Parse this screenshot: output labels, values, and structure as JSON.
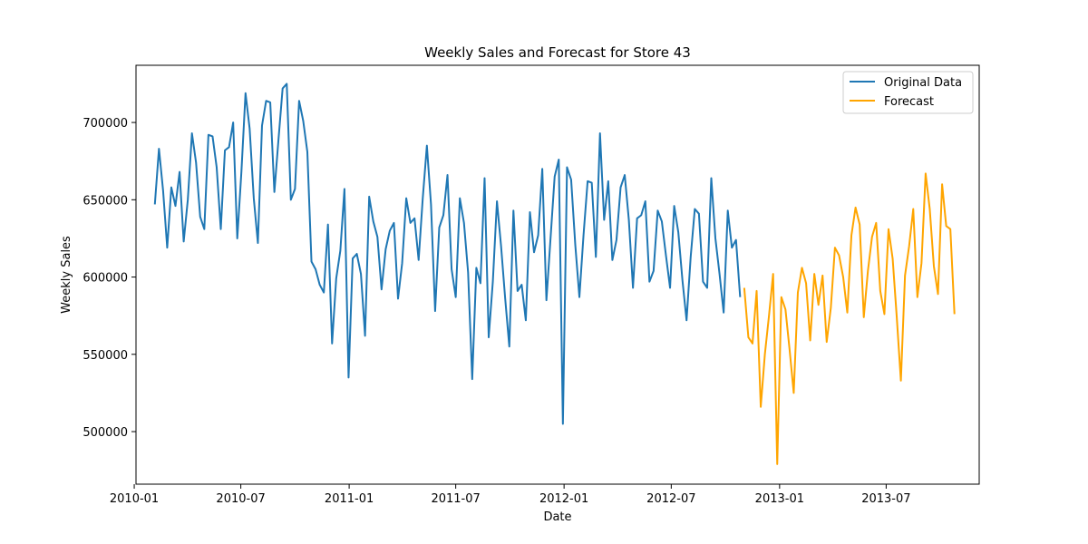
{
  "chart_data": {
    "type": "line",
    "title": "Weekly Sales and Forecast for Store 43",
    "xlabel": "Date",
    "ylabel": "Weekly Sales",
    "x_ticks": [
      "2010-01",
      "2010-07",
      "2011-01",
      "2011-07",
      "2012-01",
      "2012-07",
      "2013-01",
      "2013-07"
    ],
    "y_ticks": [
      500000,
      550000,
      600000,
      650000,
      700000
    ],
    "x_range": [
      "2010-01-04",
      "2013-12-06"
    ],
    "ylim": [
      466000,
      737000
    ],
    "grid": false,
    "legend_position": "top-right",
    "series": [
      {
        "name": "Original Data",
        "color": "#1f77b4",
        "start_date": "2010-02-05",
        "interval_days": 7,
        "values": [
          647000,
          683000,
          656000,
          619000,
          658000,
          646000,
          668000,
          623000,
          650000,
          693000,
          674000,
          639000,
          631000,
          692000,
          691000,
          671000,
          631000,
          682000,
          684000,
          700000,
          625000,
          668000,
          719000,
          696000,
          651000,
          622000,
          698000,
          714000,
          713000,
          655000,
          689000,
          722000,
          725000,
          650000,
          657000,
          714000,
          701000,
          681000,
          610000,
          605000,
          595000,
          590000,
          634000,
          557000,
          599000,
          617000,
          657000,
          535000,
          612000,
          615000,
          602000,
          562000,
          652000,
          636000,
          626000,
          592000,
          618000,
          630000,
          635000,
          586000,
          609000,
          651000,
          635000,
          638000,
          611000,
          651000,
          685000,
          647000,
          578000,
          632000,
          640000,
          666000,
          605000,
          587000,
          651000,
          635000,
          603000,
          534000,
          606000,
          596000,
          664000,
          561000,
          597000,
          649000,
          620000,
          586000,
          555000,
          643000,
          591000,
          595000,
          572000,
          642000,
          616000,
          627000,
          670000,
          585000,
          625000,
          665000,
          676000,
          505000,
          671000,
          663000,
          621000,
          587000,
          627000,
          662000,
          661000,
          613000,
          693000,
          637000,
          662000,
          611000,
          624000,
          658000,
          666000,
          637000,
          593000,
          638000,
          640000,
          649000,
          597000,
          604000,
          643000,
          636000,
          614000,
          593000,
          646000,
          629000,
          598000,
          572000,
          613000,
          644000,
          641000,
          597000,
          593000,
          664000,
          625000,
          602000,
          577000,
          643000,
          619000,
          624000,
          587000
        ]
      },
      {
        "name": "Forecast",
        "color": "#ffa500",
        "start_date": "2012-11-02",
        "interval_days": 7,
        "values": [
          593000,
          561000,
          557000,
          591000,
          516000,
          550000,
          575000,
          602000,
          479000,
          587000,
          579000,
          553000,
          525000,
          590000,
          606000,
          596000,
          559000,
          602000,
          582000,
          601000,
          558000,
          580000,
          619000,
          614000,
          600000,
          577000,
          627000,
          645000,
          634000,
          574000,
          604000,
          626000,
          635000,
          591000,
          576000,
          631000,
          612000,
          574000,
          533000,
          601000,
          620000,
          644000,
          587000,
          609000,
          667000,
          644000,
          607000,
          589000,
          660000,
          633000,
          631000,
          576000
        ]
      }
    ]
  }
}
